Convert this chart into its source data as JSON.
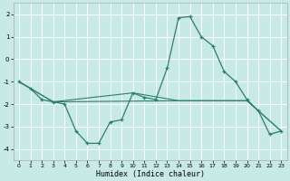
{
  "xlabel": "Humidex (Indice chaleur)",
  "background_color": "#c8eae6",
  "grid_color": "#ffffff",
  "line_color": "#2e7d6e",
  "xlim": [
    -0.5,
    23.5
  ],
  "ylim": [
    -4.5,
    2.5
  ],
  "yticks": [
    -4,
    -3,
    -2,
    -1,
    0,
    1,
    2
  ],
  "xticks": [
    0,
    1,
    2,
    3,
    4,
    5,
    6,
    7,
    8,
    9,
    10,
    11,
    12,
    13,
    14,
    15,
    16,
    17,
    18,
    19,
    20,
    21,
    22,
    23
  ],
  "series_main": {
    "x": [
      0,
      1,
      2,
      3,
      4,
      5,
      6,
      7,
      8,
      9,
      10,
      11,
      12,
      13,
      14,
      15,
      16,
      17,
      18,
      19,
      20,
      21,
      22,
      23
    ],
    "y": [
      -1.0,
      -1.3,
      -1.8,
      -1.9,
      -2.0,
      -3.2,
      -3.75,
      -3.75,
      -2.8,
      -2.7,
      -1.5,
      -1.7,
      -1.8,
      -0.4,
      1.85,
      1.9,
      1.0,
      0.6,
      -0.55,
      -1.0,
      -1.8,
      -2.3,
      -3.35,
      -3.2
    ]
  },
  "series_flat1": {
    "x": [
      0,
      3,
      14,
      20,
      23
    ],
    "y": [
      -1.0,
      -1.9,
      -1.85,
      -1.85,
      -3.2
    ]
  },
  "series_flat2": {
    "x": [
      0,
      3,
      10,
      14,
      20,
      23
    ],
    "y": [
      -1.0,
      -1.9,
      -1.5,
      -1.85,
      -1.85,
      -3.2
    ]
  }
}
